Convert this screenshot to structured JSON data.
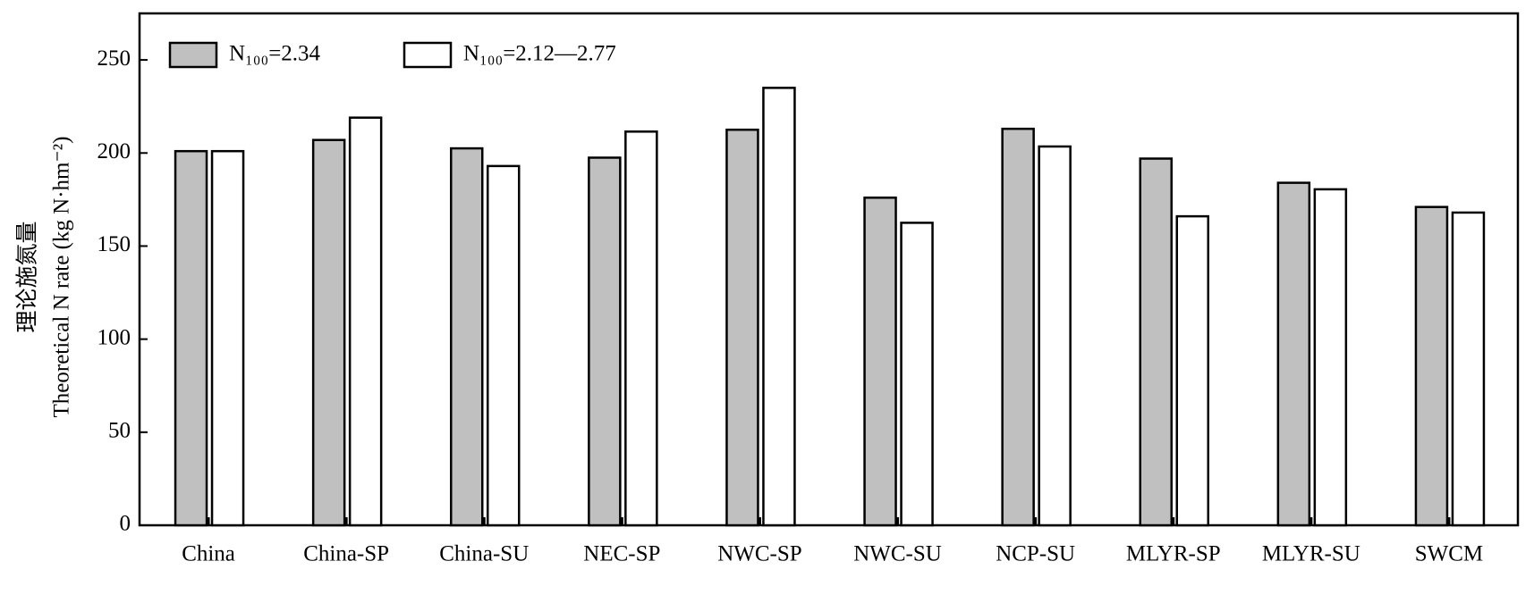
{
  "chart_data": {
    "type": "bar",
    "y_label_lines": [
      "理论施氮量",
      "Theoretical N rate (kg N·hm⁻²)"
    ],
    "categories": [
      "China",
      "China-SP",
      "China-SU",
      "NEC-SP",
      "NWC-SP",
      "NWC-SU",
      "NCP-SU",
      "MLYR-SP",
      "MLYR-SU",
      "SWCM"
    ],
    "series": [
      {
        "name": "N₁₀₀=2.34",
        "color": "#c0c0c0",
        "values": [
          201,
          207,
          202.5,
          197.5,
          212.5,
          176,
          213,
          197,
          184,
          171
        ]
      },
      {
        "name": "N₁₀₀=2.12—2.77",
        "color": "#ffffff",
        "values": [
          201,
          219,
          193,
          211.5,
          235,
          162.5,
          203.5,
          166,
          180.5,
          168
        ]
      }
    ],
    "ylim": [
      0,
      275
    ],
    "yticks": [
      0,
      50,
      100,
      150,
      200,
      250
    ],
    "grid": false,
    "legend": "top-left"
  }
}
